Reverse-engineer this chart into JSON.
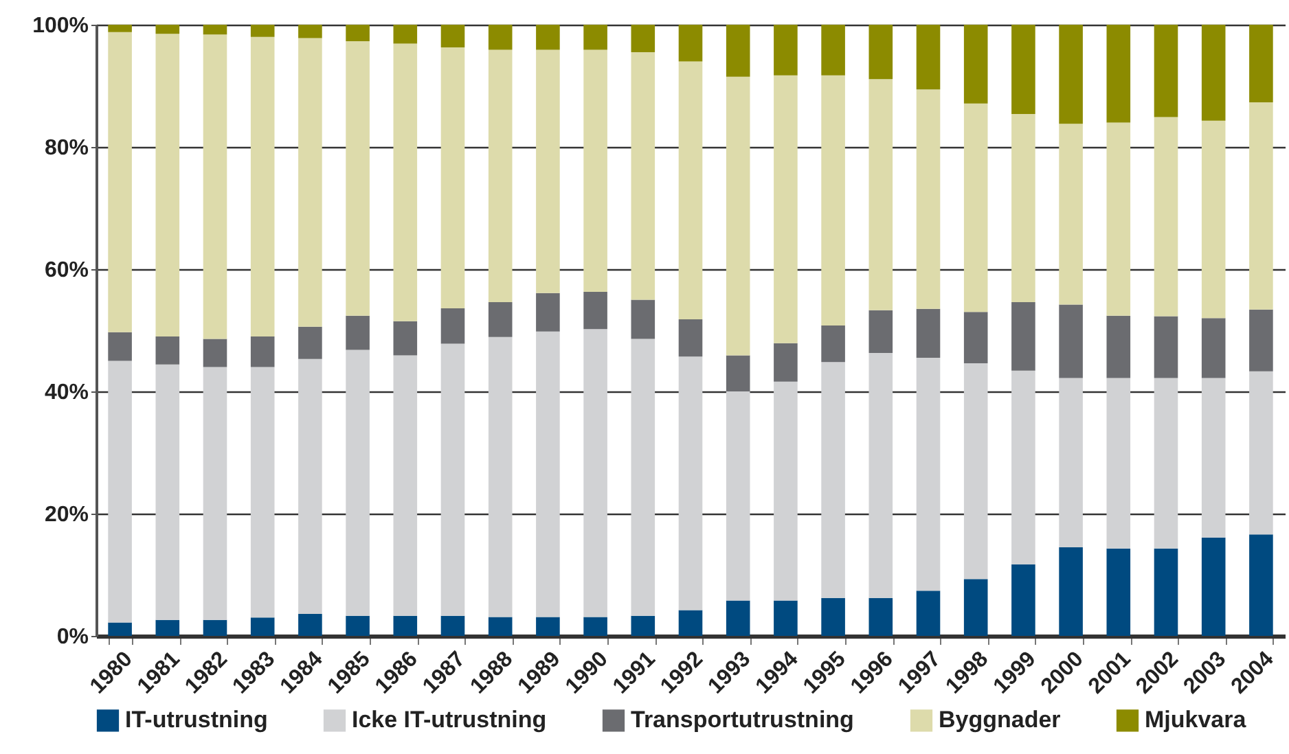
{
  "chart_data": {
    "type": "bar",
    "stacked": true,
    "categories": [
      "1980",
      "1981",
      "1982",
      "1983",
      "1984",
      "1985",
      "1986",
      "1987",
      "1988",
      "1989",
      "1990",
      "1991",
      "1992",
      "1993",
      "1994",
      "1995",
      "1996",
      "1997",
      "1998",
      "1999",
      "2000",
      "2001",
      "2002",
      "2003",
      "2004"
    ],
    "series": [
      {
        "name": "IT-utrustning",
        "color": "#004a80",
        "values": [
          2.2,
          2.6,
          2.6,
          3,
          3.6,
          3.3,
          3.3,
          3.3,
          3.1,
          3.1,
          3.1,
          3.3,
          4.2,
          5.8,
          5.8,
          6.2,
          6.2,
          7.4,
          9.3,
          11.7,
          14.5,
          14.3,
          14.3,
          16.1,
          16.6
        ]
      },
      {
        "name": "Icke IT-utrustning",
        "color": "#d1d2d4",
        "values": [
          42.8,
          41.8,
          41.4,
          41,
          41.7,
          43.5,
          42.6,
          44.5,
          45.8,
          46.7,
          47.1,
          45.3,
          41.5,
          34.2,
          35.8,
          38.6,
          40.1,
          38.1,
          35.3,
          31.7,
          27.7,
          27.9,
          27.9,
          26.1,
          26.7
        ]
      },
      {
        "name": "Transportutrustning",
        "color": "#6b6c70",
        "values": [
          4.7,
          4.6,
          4.6,
          5,
          5.3,
          5.6,
          5.6,
          5.8,
          5.7,
          6.3,
          6.1,
          6.4,
          6.1,
          5.9,
          6.3,
          6,
          7,
          8,
          8.4,
          11.2,
          12,
          10.2,
          10.1,
          9.8,
          10.1
        ]
      },
      {
        "name": "Byggnader",
        "color": "#dddbab",
        "values": [
          49.1,
          49.5,
          49.8,
          49,
          47.2,
          44.9,
          45.4,
          42.7,
          41.3,
          39.8,
          39.6,
          40.5,
          42.2,
          45.6,
          43.8,
          40.9,
          37.8,
          35.9,
          34.1,
          30.8,
          29.6,
          31.6,
          32.6,
          32.3,
          33.9
        ]
      },
      {
        "name": "Mjukvara",
        "color": "#8c8b00",
        "values": [
          1.2,
          1.5,
          1.6,
          2,
          2.2,
          2.7,
          3.1,
          3.7,
          4.1,
          4.1,
          4.1,
          4.5,
          6,
          8.5,
          8.3,
          8.3,
          8.9,
          10.6,
          12.9,
          14.6,
          16.2,
          16,
          15.1,
          15.7,
          12.7
        ]
      }
    ],
    "ylim": [
      0,
      100
    ],
    "yticks": [
      {
        "value": 0,
        "label": "0%"
      },
      {
        "value": 20,
        "label": "20%"
      },
      {
        "value": 40,
        "label": "40%"
      },
      {
        "value": 60,
        "label": "60%"
      },
      {
        "value": 80,
        "label": "80%"
      },
      {
        "value": 100,
        "label": "100%"
      }
    ],
    "grid": "y",
    "legend": "bottom"
  }
}
